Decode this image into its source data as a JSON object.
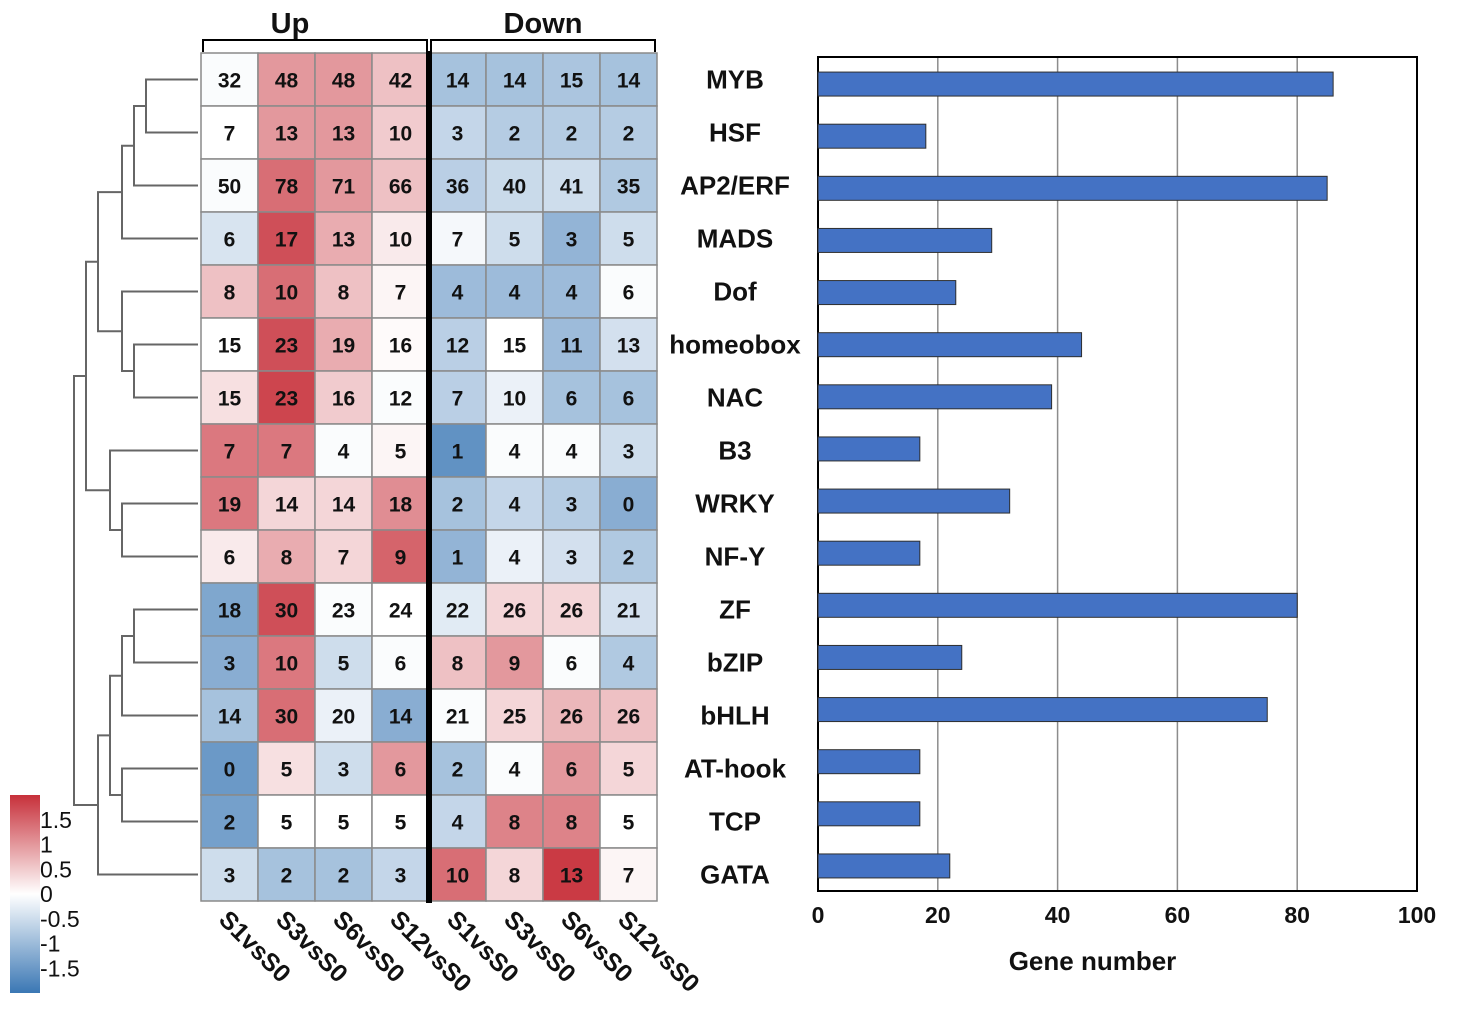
{
  "chart_data": [
    {
      "type": "heatmap",
      "title": "",
      "column_groups": [
        {
          "label": "Up",
          "columns": [
            "S1vsS0",
            "S3vsS0",
            "S6vsS0",
            "S12vsS0"
          ]
        },
        {
          "label": "Down",
          "columns": [
            "S1vsS0",
            "S3vsS0",
            "S6vsS0",
            "S12vsS0"
          ]
        }
      ],
      "columns": [
        "S1vsS0",
        "S3vsS0",
        "S6vsS0",
        "S12vsS0",
        "S1vsS0",
        "S3vsS0",
        "S6vsS0",
        "S12vsS0"
      ],
      "rows": [
        "MYB",
        "HSF",
        "AP2/ERF",
        "MADS",
        "Dof",
        "homeobox",
        "NAC",
        "B3",
        "WRKY",
        "NF-Y",
        "ZF",
        "bZIP",
        "bHLH",
        "AT-hook",
        "TCP",
        "GATA"
      ],
      "values": [
        [
          32,
          48,
          48,
          42,
          14,
          14,
          15,
          14
        ],
        [
          7,
          13,
          13,
          10,
          3,
          2,
          2,
          2
        ],
        [
          50,
          78,
          71,
          66,
          36,
          40,
          41,
          35
        ],
        [
          6,
          17,
          13,
          10,
          7,
          5,
          3,
          5
        ],
        [
          8,
          10,
          8,
          7,
          4,
          4,
          4,
          6
        ],
        [
          15,
          23,
          19,
          16,
          12,
          15,
          11,
          13
        ],
        [
          15,
          23,
          16,
          12,
          7,
          10,
          6,
          6
        ],
        [
          7,
          7,
          4,
          5,
          1,
          4,
          4,
          3
        ],
        [
          19,
          14,
          14,
          18,
          2,
          4,
          3,
          0
        ],
        [
          6,
          8,
          7,
          9,
          1,
          4,
          3,
          2
        ],
        [
          18,
          30,
          23,
          24,
          22,
          26,
          26,
          21
        ],
        [
          3,
          10,
          5,
          6,
          8,
          9,
          6,
          4
        ],
        [
          14,
          30,
          20,
          14,
          21,
          25,
          26,
          26
        ],
        [
          0,
          5,
          3,
          6,
          2,
          4,
          6,
          5
        ],
        [
          2,
          5,
          5,
          5,
          4,
          8,
          8,
          5
        ],
        [
          3,
          2,
          2,
          3,
          10,
          8,
          13,
          7
        ]
      ],
      "zscores": [
        [
          -0.05,
          1.0,
          1.0,
          0.6,
          -0.9,
          -0.9,
          -0.85,
          -0.9
        ],
        [
          0.0,
          1.0,
          1.0,
          0.5,
          -0.6,
          -0.75,
          -0.75,
          -0.75
        ],
        [
          -0.05,
          1.4,
          1.0,
          0.6,
          -0.7,
          -0.55,
          -0.5,
          -0.8
        ],
        [
          -0.4,
          1.7,
          0.8,
          0.2,
          -0.1,
          -0.5,
          -1.1,
          -0.5
        ],
        [
          0.6,
          1.4,
          0.6,
          0.1,
          -1.0,
          -1.0,
          -1.0,
          -0.05
        ],
        [
          0.0,
          1.7,
          0.8,
          0.05,
          -0.7,
          0.0,
          -1.0,
          -0.45
        ],
        [
          0.3,
          1.8,
          0.5,
          -0.05,
          -0.7,
          -0.2,
          -0.9,
          -0.9
        ],
        [
          1.3,
          1.3,
          -0.05,
          0.1,
          -1.6,
          -0.05,
          -0.05,
          -0.5
        ],
        [
          1.3,
          0.4,
          0.4,
          1.1,
          -0.9,
          -0.6,
          -0.75,
          -1.2
        ],
        [
          0.2,
          0.8,
          0.4,
          1.5,
          -1.1,
          -0.2,
          -0.45,
          -0.8
        ],
        [
          -1.3,
          1.7,
          -0.05,
          0.0,
          -0.3,
          0.4,
          0.4,
          -0.45
        ],
        [
          -1.2,
          1.3,
          -0.5,
          -0.05,
          0.6,
          1.0,
          -0.05,
          -0.8
        ],
        [
          -0.9,
          1.4,
          -0.2,
          -1.2,
          -0.05,
          0.4,
          0.7,
          0.6
        ],
        [
          -1.5,
          0.3,
          -0.5,
          1.0,
          -0.9,
          -0.05,
          1.0,
          0.4
        ],
        [
          -1.4,
          0.0,
          0.0,
          0.0,
          -0.6,
          1.2,
          1.2,
          0.0
        ],
        [
          -0.5,
          -0.9,
          -0.9,
          -0.6,
          1.4,
          0.4,
          1.9,
          0.1
        ]
      ],
      "legend": {
        "position": "bottom-left",
        "ticks": [
          "1.5",
          "1",
          "0.5",
          "0",
          "-0.5",
          "-1",
          "-1.5"
        ],
        "tick_values": [
          1.5,
          1,
          0.5,
          0,
          -0.5,
          -1,
          -1.5
        ],
        "range": [
          -2,
          2
        ],
        "low_color": "#3a77b4",
        "mid_color": "#ffffff",
        "high_color": "#c7303a"
      },
      "dendrogram": "rows"
    },
    {
      "type": "bar",
      "orientation": "horizontal",
      "categories": [
        "MYB",
        "HSF",
        "AP2/ERF",
        "MADS",
        "Dof",
        "homeobox",
        "NAC",
        "B3",
        "WRKY",
        "NF-Y",
        "ZF",
        "bZIP",
        "bHLH",
        "AT-hook",
        "TCP",
        "GATA"
      ],
      "values": [
        86,
        18,
        85,
        29,
        23,
        44,
        39,
        17,
        32,
        17,
        80,
        24,
        75,
        17,
        17,
        22
      ],
      "xlabel": "Gene number",
      "ylabel": "",
      "xlim": [
        0,
        100
      ],
      "xticks": [
        "0",
        "20",
        "40",
        "60",
        "80",
        "100"
      ],
      "xtick_values": [
        0,
        20,
        40,
        60,
        80,
        100
      ],
      "grid": "vertical",
      "bar_color": "#4472c4"
    }
  ]
}
